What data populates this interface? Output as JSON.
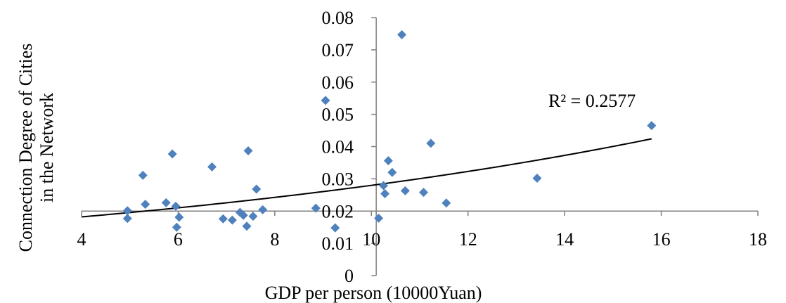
{
  "chart_data": {
    "type": "scatter",
    "title": "",
    "xlabel": "GDP per person (10000Yuan)",
    "ylabel_lines": [
      "Connection Degree of Cities",
      "in the Network"
    ],
    "xlim": [
      4,
      18
    ],
    "ylim": [
      0,
      0.08
    ],
    "x_ticks": [
      4,
      6,
      8,
      10,
      12,
      14,
      16,
      18
    ],
    "y_ticks": [
      0,
      0.01,
      0.02,
      0.03,
      0.04,
      0.05,
      0.06,
      0.07,
      0.08
    ],
    "x_tick_labels": [
      "4",
      "6",
      "8",
      "10",
      "12",
      "14",
      "16",
      "18"
    ],
    "y_tick_labels": [
      "0",
      "0.01",
      "0.02",
      "0.03",
      "0.04",
      "0.05",
      "0.06",
      "0.07",
      "0.08"
    ],
    "axis_crossing": {
      "x_axis_at_y": 0.02,
      "y_axis_at_x": 10.1
    },
    "grid": false,
    "legend": "none",
    "marker": "diamond",
    "marker_color": "#4F81BD",
    "trendline": {
      "type": "exponential",
      "color": "#000000",
      "x_range": [
        4.0,
        15.8
      ],
      "y_start": 0.0182,
      "y_end": 0.0424,
      "label": "R² = 0.2577"
    },
    "points": [
      {
        "x": 4.95,
        "y": 0.0201
      },
      {
        "x": 4.95,
        "y": 0.0177
      },
      {
        "x": 5.27,
        "y": 0.0311
      },
      {
        "x": 5.32,
        "y": 0.0221
      },
      {
        "x": 5.75,
        "y": 0.0226
      },
      {
        "x": 5.88,
        "y": 0.0377
      },
      {
        "x": 5.95,
        "y": 0.0215
      },
      {
        "x": 5.97,
        "y": 0.015
      },
      {
        "x": 6.02,
        "y": 0.0181
      },
      {
        "x": 6.7,
        "y": 0.0337
      },
      {
        "x": 6.93,
        "y": 0.0176
      },
      {
        "x": 7.12,
        "y": 0.0172
      },
      {
        "x": 7.28,
        "y": 0.0196
      },
      {
        "x": 7.35,
        "y": 0.0187
      },
      {
        "x": 7.42,
        "y": 0.0153
      },
      {
        "x": 7.45,
        "y": 0.0387
      },
      {
        "x": 7.55,
        "y": 0.0184
      },
      {
        "x": 7.62,
        "y": 0.0268
      },
      {
        "x": 7.75,
        "y": 0.0204
      },
      {
        "x": 8.85,
        "y": 0.0209
      },
      {
        "x": 9.05,
        "y": 0.0543
      },
      {
        "x": 9.25,
        "y": 0.0148
      },
      {
        "x": 10.15,
        "y": 0.0178
      },
      {
        "x": 10.25,
        "y": 0.0279
      },
      {
        "x": 10.28,
        "y": 0.0254
      },
      {
        "x": 10.35,
        "y": 0.0356
      },
      {
        "x": 10.43,
        "y": 0.032
      },
      {
        "x": 10.63,
        "y": 0.0747
      },
      {
        "x": 10.7,
        "y": 0.0263
      },
      {
        "x": 11.08,
        "y": 0.0258
      },
      {
        "x": 11.23,
        "y": 0.041
      },
      {
        "x": 11.55,
        "y": 0.0225
      },
      {
        "x": 13.43,
        "y": 0.0302
      },
      {
        "x": 15.8,
        "y": 0.0465
      }
    ]
  }
}
